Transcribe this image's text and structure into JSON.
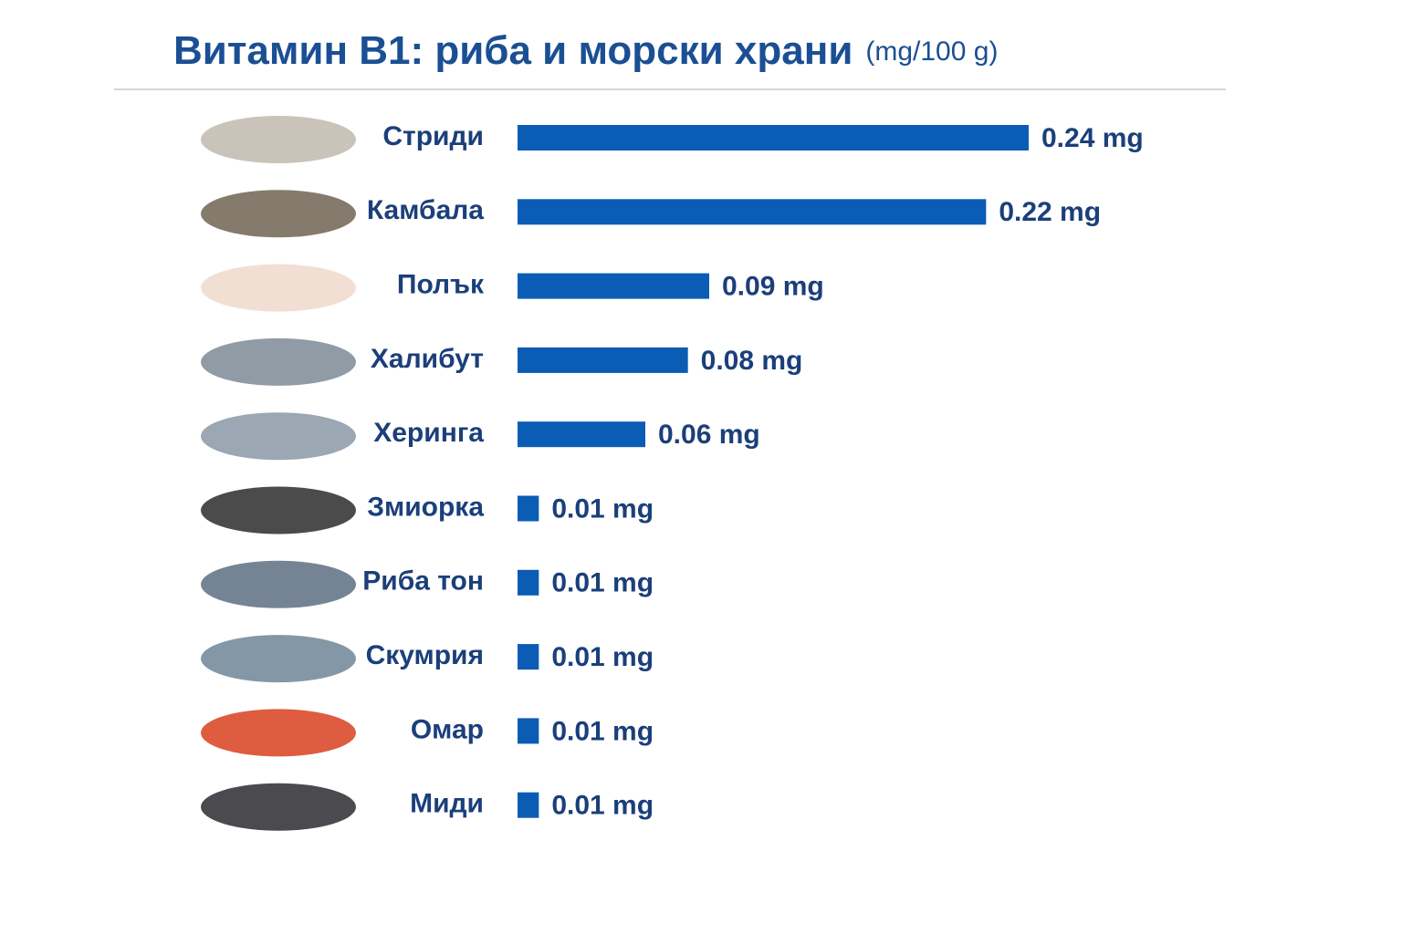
{
  "chart_data": {
    "type": "bar",
    "orientation": "horizontal",
    "title": "Витамин В1: риба и морски храни",
    "subtitle": "(mg/100 g)",
    "categories": [
      "Стриди",
      "Камбала",
      "Полък",
      "Халибут",
      "Херинга",
      "Змиорка",
      "Риба тон",
      "Скумрия",
      "Омар",
      "Миди"
    ],
    "values": [
      0.24,
      0.22,
      0.09,
      0.08,
      0.06,
      0.01,
      0.01,
      0.01,
      0.01,
      0.01
    ],
    "value_labels": [
      "0.24 mg",
      "0.22 mg",
      "0.09 mg",
      "0.08 mg",
      "0.06 mg",
      "0.01 mg",
      "0.01 mg",
      "0.01 mg",
      "0.01 mg",
      "0.01 mg"
    ],
    "color": "#0b5cb5"
  }
}
